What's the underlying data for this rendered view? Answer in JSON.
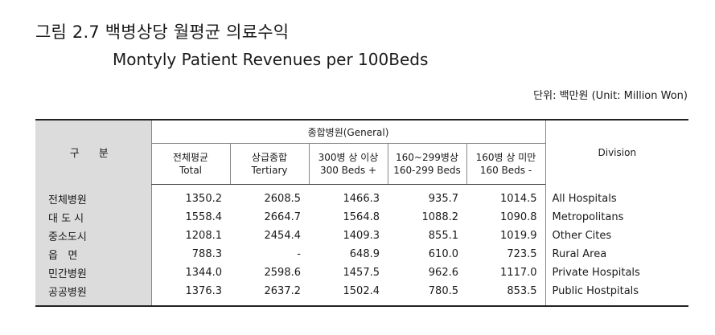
{
  "title": {
    "korean": "그림 2.7 백병상당 월평균 의료수익",
    "english": "Montyly Patient Revenues per 100Beds"
  },
  "unit": "단위: 백만원 (Unit: Million Won)",
  "table": {
    "corner_label": "구 분",
    "group_label": "종합병원(General)",
    "division_label": "Division",
    "columns": [
      {
        "ko": "전체평균",
        "en": "Total"
      },
      {
        "ko": "상급종합",
        "en": "Tertiary"
      },
      {
        "ko": "300병 상 이상",
        "en": "300 Beds +"
      },
      {
        "ko": "160~299병상",
        "en": "160-299 Beds"
      },
      {
        "ko": "160병 상 미만",
        "en": "160 Beds -"
      }
    ],
    "rows": [
      {
        "label": "전체병원",
        "values": [
          "1350.2",
          "2608.5",
          "1466.3",
          "935.7",
          "1014.5"
        ],
        "division": "All Hospitals"
      },
      {
        "label": "대 도 시",
        "values": [
          "1558.4",
          "2664.7",
          "1564.8",
          "1088.2",
          "1090.8"
        ],
        "division": "Metropolitans"
      },
      {
        "label": "중소도시",
        "values": [
          "1208.1",
          "2454.4",
          "1409.3",
          "855.1",
          "1019.9"
        ],
        "division": "Other Cites"
      },
      {
        "label": "읍   면",
        "values": [
          "788.3",
          "-",
          "648.9",
          "610.0",
          "723.5"
        ],
        "division": "Rural Area"
      },
      {
        "label": "민간병원",
        "values": [
          "1344.0",
          "2598.6",
          "1457.5",
          "962.6",
          "1117.0"
        ],
        "division": "Private Hospitals"
      },
      {
        "label": "공공병원",
        "values": [
          "1376.3",
          "2637.2",
          "1502.4",
          "780.5",
          "853.5"
        ],
        "division": "Public Hostpitals"
      }
    ]
  }
}
